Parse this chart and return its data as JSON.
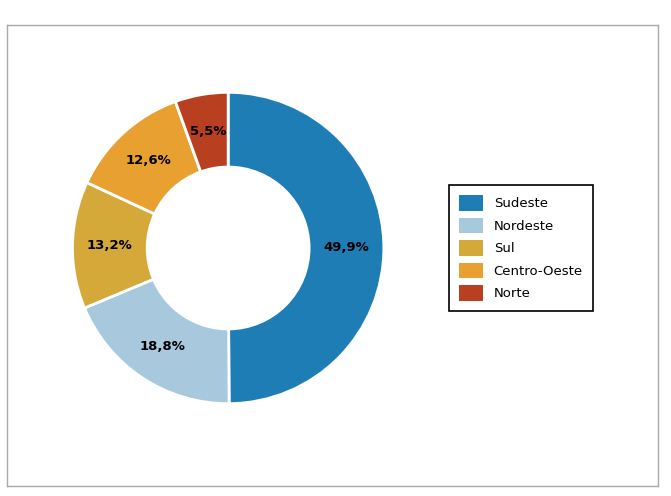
{
  "labels": [
    "Sudeste",
    "Nordeste",
    "Sul",
    "Centro-Oeste",
    "Norte"
  ],
  "values": [
    49.9,
    18.8,
    13.2,
    12.6,
    5.5
  ],
  "colors": [
    "#1e7db5",
    "#a8c8de",
    "#d4a93a",
    "#e8a030",
    "#b84020"
  ],
  "pct_labels": [
    "49,9%",
    "18,8%",
    "13,2%",
    "12,6%",
    "5,5%"
  ],
  "donut_width": 0.48,
  "legend_fontsize": 9.5,
  "label_fontsize": 9.5,
  "background_color": "#ffffff",
  "border_color": "#aaaaaa",
  "frame_border_color": "#000000"
}
